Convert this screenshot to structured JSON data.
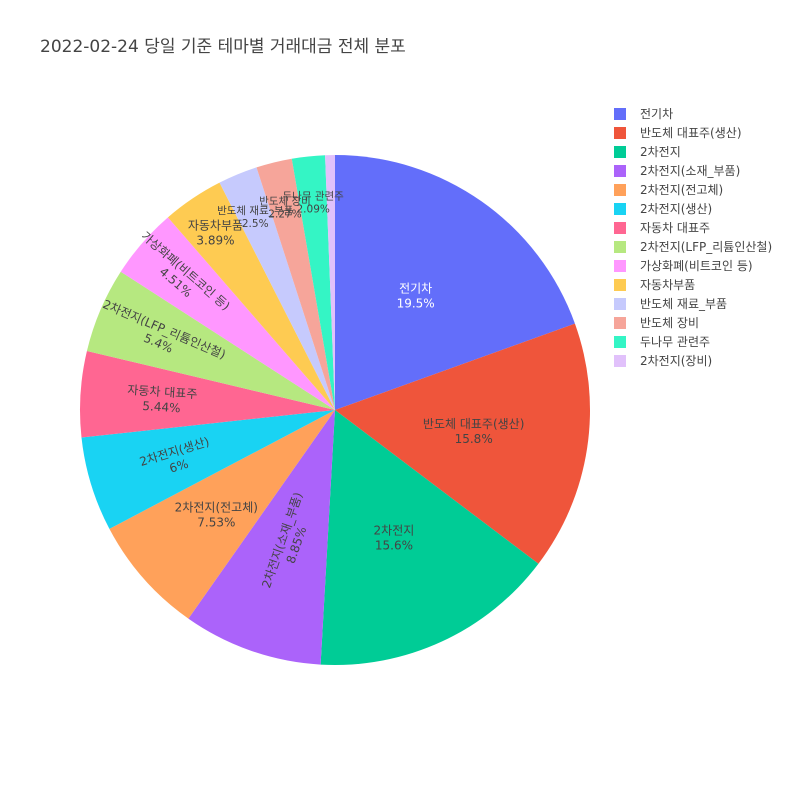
{
  "chart_data": {
    "type": "pie",
    "title": "2022-02-24 당일 기준 테마별 거래대금 전체 분포",
    "slices": [
      {
        "label": "전기차",
        "value": 19.5,
        "text": "19.5%",
        "color": "#636efa"
      },
      {
        "label": "반도체 대표주(생산)",
        "value": 15.8,
        "text": "15.8%",
        "color": "#ef553b"
      },
      {
        "label": "2차전지",
        "value": 15.6,
        "text": "15.6%",
        "color": "#00cc96"
      },
      {
        "label": "2차전지(소재_부품)",
        "value": 8.85,
        "text": "8.85%",
        "color": "#ab63fa"
      },
      {
        "label": "2차전지(전고체)",
        "value": 7.53,
        "text": "7.53%",
        "color": "#ffa15a"
      },
      {
        "label": "2차전지(생산)",
        "value": 6.0,
        "text": "6%",
        "color": "#19d3f3"
      },
      {
        "label": "자동차 대표주",
        "value": 5.44,
        "text": "5.44%",
        "color": "#ff6692"
      },
      {
        "label": "2차전지(LFP_리튬인산철)",
        "value": 5.4,
        "text": "5.4%",
        "color": "#b6e880"
      },
      {
        "label": "가상화폐(비트코인 등)",
        "value": 4.51,
        "text": "4.51%",
        "color": "#ff97ff"
      },
      {
        "label": "자동차부품",
        "value": 3.89,
        "text": "3.89%",
        "color": "#fecb52"
      },
      {
        "label": "반도체 재료_부품",
        "value": 2.5,
        "text": "2.5%",
        "color": "#c6cafd"
      },
      {
        "label": "반도체 장비",
        "value": 2.27,
        "text": "2.27%",
        "color": "#f6a59a"
      },
      {
        "label": "두나무 관련주",
        "value": 2.09,
        "text": "2.09%",
        "color": "#34f5c5"
      },
      {
        "label": "2차전지(장비)",
        "value": 0.62,
        "text": "",
        "color": "#e1c1fb"
      }
    ],
    "direction": "clockwise",
    "legend_position": "top-right"
  }
}
